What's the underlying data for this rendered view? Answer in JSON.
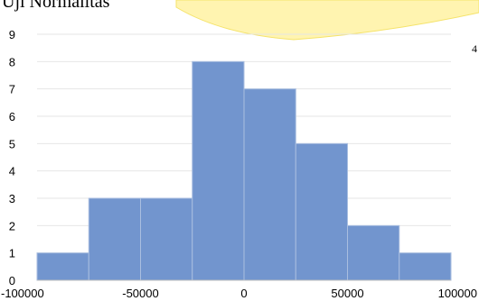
{
  "heading": "Uji Normalitas",
  "stray_mark": "4",
  "colors": {
    "bar_fill": "#7295CE",
    "bar_edge": "#A9BEE0",
    "gridline": "#E6E6E6",
    "axis": "#BFBFBF",
    "watermark": "#FFF4B0",
    "watermark_edge": "#F5E36A"
  },
  "chart_data": {
    "type": "bar",
    "title": "",
    "xlabel": "",
    "ylabel": "",
    "bin_edges": [
      -100000,
      -75000,
      -50000,
      -25000,
      0,
      25000,
      50000,
      75000,
      100000
    ],
    "values": [
      1,
      3,
      3,
      8,
      7,
      5,
      2,
      1
    ],
    "xlim": [
      -100000,
      100000
    ],
    "ylim": [
      0,
      9
    ],
    "x_ticks": [
      "-100000",
      "-50000",
      "0",
      "50000",
      "100000"
    ],
    "y_ticks": [
      "0",
      "1",
      "2",
      "3",
      "4",
      "5",
      "6",
      "7",
      "8",
      "9"
    ],
    "grid": true,
    "legend": "none"
  }
}
